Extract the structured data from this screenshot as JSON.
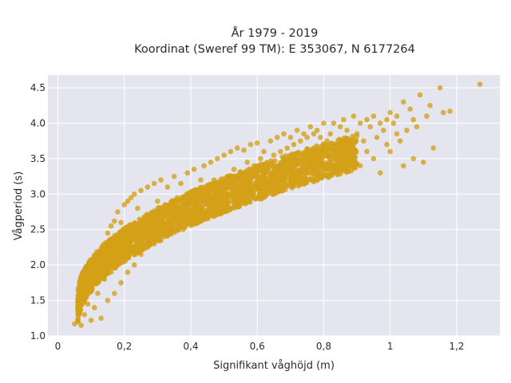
{
  "chart_data": {
    "type": "scatter",
    "title_line1": "År 1979 - 2019",
    "title_line2": "Koordinat (Sweref 99 TM): E 353067, N 6177264",
    "xlabel": "Signifikant våghöjd (m)",
    "ylabel": "Vågperiod (s)",
    "xlim": [
      -0.03,
      1.33
    ],
    "ylim": [
      1.0,
      4.68
    ],
    "x_ticks": [
      0,
      0.2,
      0.4,
      0.6,
      0.8,
      1.0,
      1.2
    ],
    "x_tick_labels": [
      "0",
      "0,2",
      "0,4",
      "0,6",
      "0,8",
      "1",
      "1,2"
    ],
    "y_ticks": [
      1.0,
      1.5,
      2.0,
      2.5,
      3.0,
      3.5,
      4.0,
      4.5
    ],
    "y_tick_labels": [
      "1.0",
      "1.5",
      "2.0",
      "2.5",
      "3.0",
      "3.5",
      "4.0",
      "4.5"
    ],
    "grid": true,
    "background_color": "#e5e5f0",
    "point_color": "#d4a017",
    "series": [
      {
        "points": [
          [
            0.05,
            1.17
          ],
          [
            0.06,
            1.2
          ],
          [
            0.07,
            1.15
          ],
          [
            0.08,
            1.55
          ],
          [
            0.08,
            1.3
          ],
          [
            0.09,
            1.45
          ],
          [
            0.1,
            1.22
          ],
          [
            0.1,
            1.7
          ],
          [
            0.11,
            1.9
          ],
          [
            0.11,
            1.4
          ],
          [
            0.12,
            2.0
          ],
          [
            0.12,
            1.6
          ],
          [
            0.13,
            2.15
          ],
          [
            0.13,
            1.25
          ],
          [
            0.14,
            2.3
          ],
          [
            0.14,
            1.8
          ],
          [
            0.15,
            2.45
          ],
          [
            0.15,
            1.5
          ],
          [
            0.16,
            2.55
          ],
          [
            0.16,
            1.9
          ],
          [
            0.17,
            2.62
          ],
          [
            0.17,
            1.6
          ],
          [
            0.18,
            2.75
          ],
          [
            0.18,
            2.0
          ],
          [
            0.19,
            2.6
          ],
          [
            0.19,
            1.75
          ],
          [
            0.2,
            2.85
          ],
          [
            0.2,
            2.1
          ],
          [
            0.21,
            2.9
          ],
          [
            0.21,
            1.9
          ],
          [
            0.22,
            2.95
          ],
          [
            0.22,
            2.2
          ],
          [
            0.23,
            3.0
          ],
          [
            0.23,
            2.0
          ],
          [
            0.24,
            2.8
          ],
          [
            0.25,
            3.05
          ],
          [
            0.25,
            2.15
          ],
          [
            0.26,
            2.5
          ],
          [
            0.27,
            3.1
          ],
          [
            0.27,
            2.25
          ],
          [
            0.28,
            2.7
          ],
          [
            0.29,
            3.15
          ],
          [
            0.29,
            2.3
          ],
          [
            0.3,
            2.9
          ],
          [
            0.31,
            3.2
          ],
          [
            0.31,
            2.35
          ],
          [
            0.32,
            2.6
          ],
          [
            0.33,
            3.1
          ],
          [
            0.33,
            2.45
          ],
          [
            0.34,
            2.8
          ],
          [
            0.35,
            3.25
          ],
          [
            0.35,
            2.5
          ],
          [
            0.36,
            2.95
          ],
          [
            0.37,
            3.15
          ],
          [
            0.37,
            2.55
          ],
          [
            0.38,
            2.75
          ],
          [
            0.39,
            3.3
          ],
          [
            0.39,
            2.6
          ],
          [
            0.4,
            3.0
          ],
          [
            0.41,
            3.35
          ],
          [
            0.41,
            2.62
          ],
          [
            0.42,
            2.85
          ],
          [
            0.43,
            3.2
          ],
          [
            0.43,
            2.68
          ],
          [
            0.44,
            3.4
          ],
          [
            0.45,
            2.75
          ],
          [
            0.45,
            3.05
          ],
          [
            0.46,
            3.45
          ],
          [
            0.47,
            2.8
          ],
          [
            0.47,
            3.2
          ],
          [
            0.48,
            3.5
          ],
          [
            0.49,
            2.85
          ],
          [
            0.49,
            3.1
          ],
          [
            0.5,
            3.55
          ],
          [
            0.51,
            2.9
          ],
          [
            0.51,
            3.25
          ],
          [
            0.52,
            3.6
          ],
          [
            0.53,
            2.95
          ],
          [
            0.53,
            3.35
          ],
          [
            0.54,
            3.65
          ],
          [
            0.55,
            3.0
          ],
          [
            0.55,
            3.3
          ],
          [
            0.56,
            3.62
          ],
          [
            0.57,
            3.05
          ],
          [
            0.57,
            3.45
          ],
          [
            0.58,
            3.7
          ],
          [
            0.59,
            3.1
          ],
          [
            0.59,
            3.4
          ],
          [
            0.6,
            3.72
          ],
          [
            0.61,
            3.15
          ],
          [
            0.61,
            3.5
          ],
          [
            0.62,
            3.6
          ],
          [
            0.63,
            3.2
          ],
          [
            0.63,
            3.45
          ],
          [
            0.64,
            3.75
          ],
          [
            0.65,
            3.25
          ],
          [
            0.65,
            3.55
          ],
          [
            0.66,
            3.8
          ],
          [
            0.67,
            3.3
          ],
          [
            0.67,
            3.6
          ],
          [
            0.68,
            3.85
          ],
          [
            0.69,
            3.35
          ],
          [
            0.69,
            3.65
          ],
          [
            0.7,
            3.8
          ],
          [
            0.71,
            3.4
          ],
          [
            0.71,
            3.7
          ],
          [
            0.72,
            3.9
          ],
          [
            0.73,
            3.45
          ],
          [
            0.73,
            3.75
          ],
          [
            0.74,
            3.85
          ],
          [
            0.75,
            3.5
          ],
          [
            0.75,
            3.8
          ],
          [
            0.76,
            3.95
          ],
          [
            0.77,
            3.55
          ],
          [
            0.77,
            3.85
          ],
          [
            0.78,
            3.9
          ],
          [
            0.79,
            3.6
          ],
          [
            0.79,
            3.8
          ],
          [
            0.8,
            4.0
          ],
          [
            0.81,
            3.55
          ],
          [
            0.81,
            3.75
          ],
          [
            0.82,
            3.85
          ],
          [
            0.83,
            3.6
          ],
          [
            0.83,
            4.0
          ],
          [
            0.84,
            3.7
          ],
          [
            0.85,
            3.95
          ],
          [
            0.85,
            3.5
          ],
          [
            0.86,
            4.05
          ],
          [
            0.87,
            3.65
          ],
          [
            0.87,
            3.9
          ],
          [
            0.88,
            3.7
          ],
          [
            0.89,
            4.1
          ],
          [
            0.89,
            3.5
          ],
          [
            0.9,
            3.85
          ],
          [
            0.91,
            4.0
          ],
          [
            0.91,
            3.4
          ],
          [
            0.92,
            3.75
          ],
          [
            0.93,
            4.05
          ],
          [
            0.93,
            3.6
          ],
          [
            0.94,
            3.95
          ],
          [
            0.95,
            4.1
          ],
          [
            0.95,
            3.5
          ],
          [
            0.96,
            3.8
          ],
          [
            0.97,
            4.0
          ],
          [
            0.97,
            3.3
          ],
          [
            0.98,
            3.9
          ],
          [
            0.99,
            4.05
          ],
          [
            0.99,
            3.7
          ],
          [
            1.0,
            4.15
          ],
          [
            1.0,
            3.6
          ],
          [
            1.01,
            4.0
          ],
          [
            1.02,
            3.85
          ],
          [
            1.02,
            4.1
          ],
          [
            1.03,
            3.75
          ],
          [
            1.04,
            3.4
          ],
          [
            1.04,
            4.3
          ],
          [
            1.05,
            3.9
          ],
          [
            1.06,
            4.2
          ],
          [
            1.07,
            3.5
          ],
          [
            1.07,
            4.05
          ],
          [
            1.08,
            3.95
          ],
          [
            1.09,
            4.4
          ],
          [
            1.1,
            3.45
          ],
          [
            1.11,
            4.1
          ],
          [
            1.12,
            4.25
          ],
          [
            1.13,
            3.65
          ],
          [
            1.15,
            4.5
          ],
          [
            1.16,
            4.15
          ],
          [
            1.18,
            4.17
          ],
          [
            1.27,
            4.55
          ]
        ]
      }
    ],
    "density_bands": [
      {
        "x0": 0.06,
        "x1": 0.9,
        "y_low0": 1.15,
        "y_low1": 3.35,
        "y_high0": 1.6,
        "y_high1": 3.85
      }
    ]
  }
}
